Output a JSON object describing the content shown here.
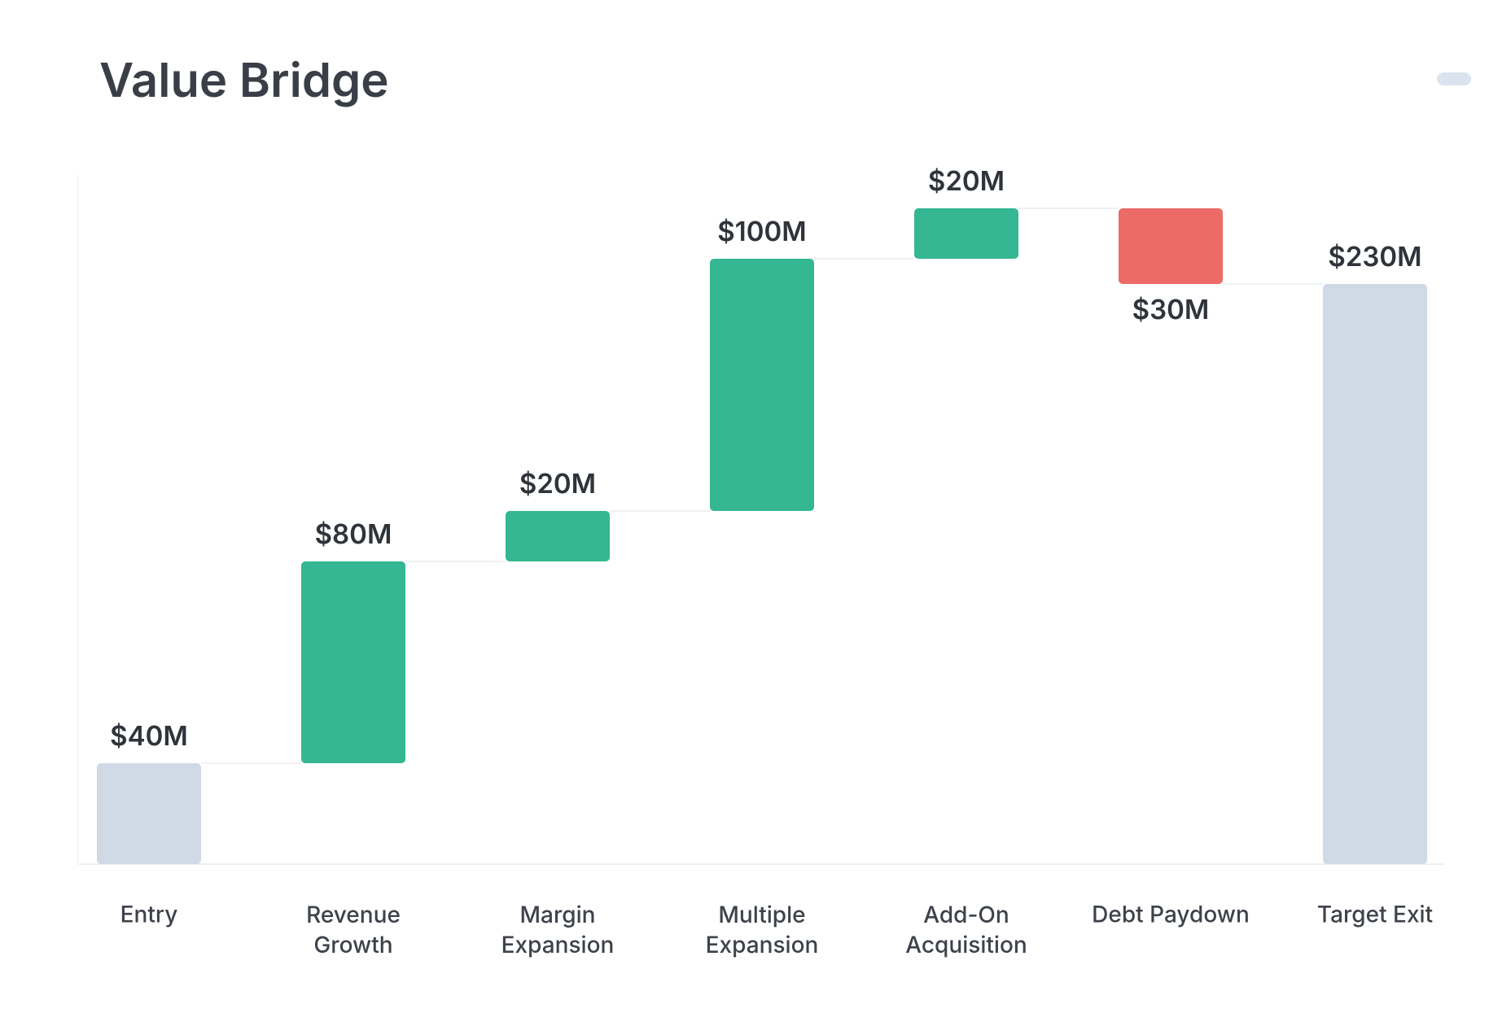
{
  "chart_data": {
    "type": "waterfall",
    "title": "Value Bridge",
    "categories": [
      "Entry",
      "Revenue Growth",
      "Margin Expansion",
      "Multiple Expansion",
      "Add-On Acquisition",
      "Debt Paydown",
      "Target Exit"
    ],
    "values": [
      40,
      80,
      20,
      100,
      20,
      -30,
      230
    ],
    "value_labels": [
      "$40M",
      "$80M",
      "$20M",
      "$100M",
      "$20M",
      "$30M",
      "$230M"
    ],
    "measures": [
      "absolute",
      "relative",
      "relative",
      "relative",
      "relative",
      "relative",
      "total"
    ],
    "colors": {
      "total": "#cfdae6",
      "increase": "#34b792",
      "decrease": "#ec6b66"
    },
    "ylim": [
      0,
      270
    ]
  }
}
